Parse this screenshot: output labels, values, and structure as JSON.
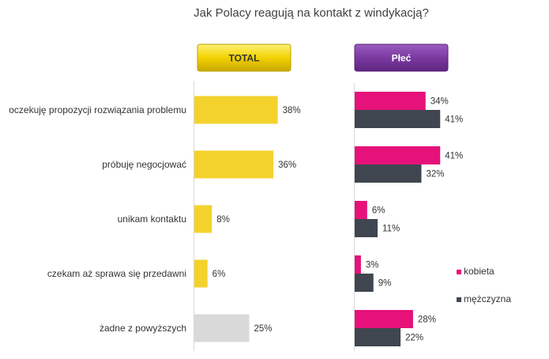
{
  "chart_data": {
    "type": "bar",
    "title": "Jak Polacy reagują na kontakt z windykacją?",
    "categories": [
      "oczekuję propozycji rozwiązania problemu",
      "próbuję negocjować",
      "unikam kontaktu",
      "czekam aż sprawa się przedawni",
      "żadne z powyższych"
    ],
    "panels": [
      {
        "header": "TOTAL",
        "header_color": "#F2D200",
        "header_text_color": "#333333",
        "series": [
          {
            "values": [
              38,
              36,
              8,
              6,
              25
            ],
            "colors": [
              "#F3D22B",
              "#F3D22B",
              "#F3D22B",
              "#F3D22B",
              "#D9D9D9"
            ]
          }
        ]
      },
      {
        "header": "Płeć",
        "header_color": "#7B3AA0",
        "header_text_color": "#FFFFFF",
        "series": [
          {
            "name": "kobieta",
            "color": "#E6127A",
            "values": [
              34,
              41,
              6,
              3,
              28
            ]
          },
          {
            "name": "mężczyzna",
            "color": "#3F4650",
            "values": [
              41,
              32,
              11,
              9,
              22
            ]
          }
        ]
      }
    ],
    "value_suffix": "%",
    "legend": {
      "position": "right",
      "items": [
        "kobieta",
        "mężczyzna"
      ]
    },
    "grid": false
  }
}
